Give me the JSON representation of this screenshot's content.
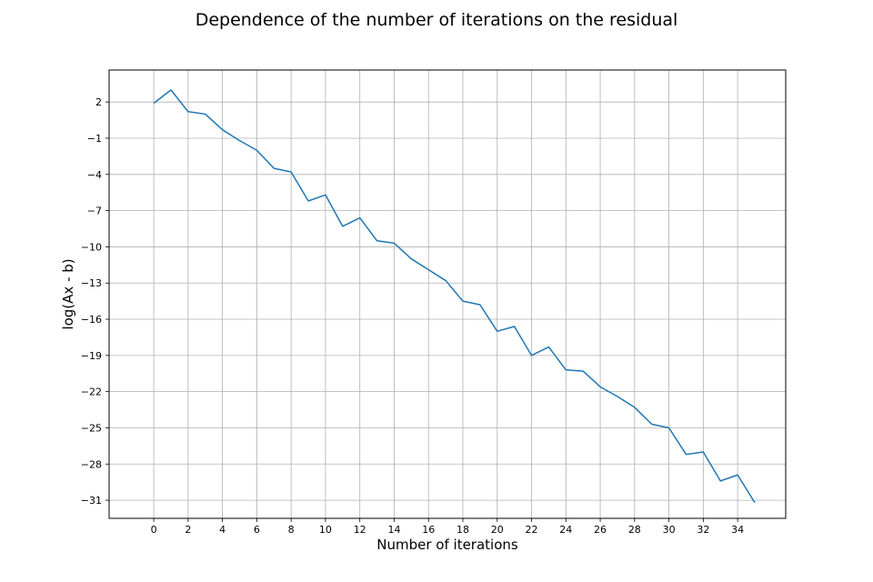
{
  "chart_data": {
    "type": "line",
    "title": "Dependence of the number of iterations on the residual",
    "xlabel": "Number of iterations",
    "ylabel": "log(Ax - b)",
    "x_ticks": [
      0,
      2,
      4,
      6,
      8,
      10,
      12,
      14,
      16,
      18,
      20,
      22,
      24,
      26,
      28,
      30,
      32,
      34
    ],
    "y_ticks": [
      2,
      -1,
      -4,
      -7,
      -10,
      -13,
      -16,
      -19,
      -22,
      -25,
      -28,
      -31
    ],
    "xlim": [
      -2.6,
      36.8
    ],
    "ylim": [
      -32.5,
      4.65
    ],
    "grid": true,
    "line_color": "#1f77b4",
    "series": [
      {
        "x": [
          0,
          1,
          2,
          3,
          4,
          5,
          6,
          7,
          8,
          9,
          10,
          11,
          12,
          13,
          14,
          15,
          16,
          17,
          18,
          19,
          20,
          21,
          22,
          23,
          24,
          25,
          26,
          27,
          28,
          29,
          30,
          31,
          32,
          33,
          34,
          35
        ],
        "y": [
          1.9,
          3.0,
          1.2,
          1.0,
          -0.3,
          -1.2,
          -2.0,
          -3.5,
          -3.8,
          -6.2,
          -5.7,
          -8.3,
          -7.6,
          -9.5,
          -9.7,
          -11.0,
          -11.9,
          -12.8,
          -14.5,
          -14.8,
          -17.0,
          -16.6,
          -19.0,
          -18.3,
          -20.2,
          -20.3,
          -21.6,
          -22.4,
          -23.3,
          -24.7,
          -25.0,
          -27.2,
          -27.0,
          -29.4,
          -28.9,
          -31.2
        ]
      }
    ]
  }
}
